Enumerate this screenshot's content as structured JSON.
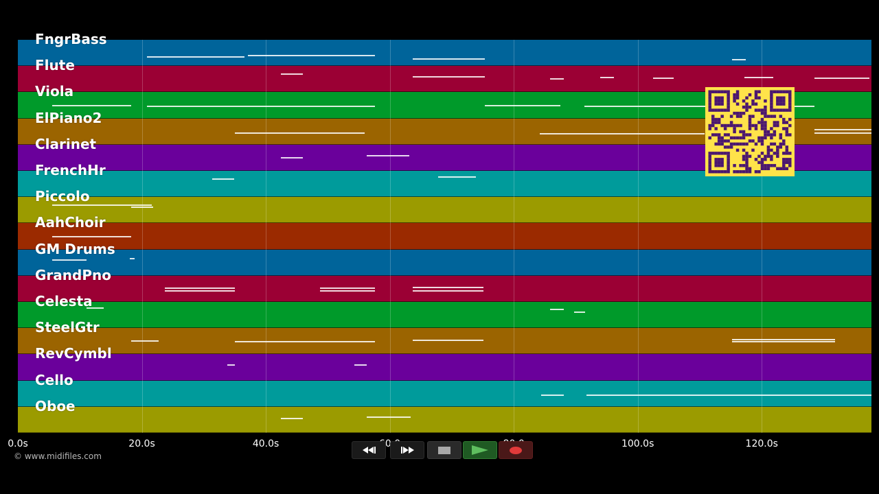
{
  "lanes": [
    {
      "name": "FngrBass",
      "color": "#00649a"
    },
    {
      "name": "Flute",
      "color": "#9b0034"
    },
    {
      "name": "Viola",
      "color": "#009a2a"
    },
    {
      "name": "ElPiano2",
      "color": "#9b6400"
    },
    {
      "name": "Clarinet",
      "color": "#6a009b"
    },
    {
      "name": "FrenchHr",
      "color": "#009b9b"
    },
    {
      "name": "Piccolo",
      "color": "#9b9b00"
    },
    {
      "name": "AahChoir",
      "color": "#9b2a00"
    },
    {
      "name": "GM Drums",
      "color": "#00649a"
    },
    {
      "name": "GrandPno",
      "color": "#9b0034"
    },
    {
      "name": "Celesta",
      "color": "#009a2a"
    },
    {
      "name": "SteelGtr",
      "color": "#9b6400"
    },
    {
      "name": "RevCymbl",
      "color": "#6a009b"
    },
    {
      "name": "Cello",
      "color": "#009b9b"
    },
    {
      "name": "Oboe",
      "color": "#9b9b00"
    }
  ],
  "timeline": {
    "ticks": [
      "0.0s",
      "20.0s",
      "40.0s",
      "60.0",
      "80.0",
      "100.0s",
      "120.0s"
    ],
    "tick_seconds": [
      0,
      20,
      40,
      60,
      80,
      100,
      120
    ],
    "max_seconds": 137.7
  },
  "copyright": "© www.midifiles.com",
  "controls": [
    {
      "name": "rewind-button",
      "icon": "rewind-icon"
    },
    {
      "name": "fast-forward-button",
      "icon": "fast-forward-icon"
    },
    {
      "name": "stop-button",
      "icon": "stop-icon"
    },
    {
      "name": "play-button",
      "icon": "play-icon"
    },
    {
      "name": "record-button",
      "icon": "record-icon"
    }
  ],
  "colors": {
    "background": "#000000",
    "qr_fill": "#ffe34a",
    "qr_modules": "#4a1670",
    "play_active": "#2f7d32",
    "record": "#e23a3a"
  }
}
